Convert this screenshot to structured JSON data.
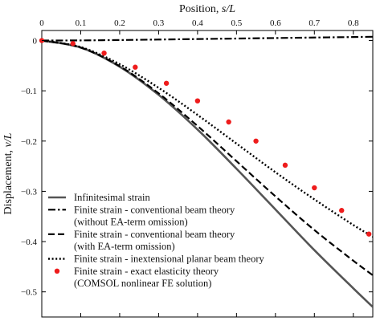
{
  "chart_data": {
    "type": "line",
    "xlabel": "Position, s/L",
    "xlabel_parts": {
      "text": "Position, ",
      "var": "s/L"
    },
    "ylabel": "Displacement, v/L",
    "ylabel_parts": {
      "text": "Displacement, ",
      "var": "v/L"
    },
    "xlim": [
      0,
      0.85
    ],
    "ylim": [
      -0.55,
      0.02
    ],
    "x_axis_position": "top",
    "x_ticks": [
      0,
      0.1,
      0.2,
      0.3,
      0.4,
      0.5,
      0.6,
      0.7,
      0.8
    ],
    "x_tick_labels": [
      "0",
      "0.1",
      "0.2",
      "0.3",
      "0.4",
      "0.5",
      "0.6",
      "0.7",
      "0.8"
    ],
    "y_ticks": [
      0,
      -0.1,
      -0.2,
      -0.3,
      -0.4,
      -0.5
    ],
    "y_tick_labels": [
      "0",
      "−0.1",
      "−0.2",
      "−0.3",
      "−0.4",
      "−0.5"
    ],
    "grid": false,
    "legend_position": "bottom-left",
    "series": [
      {
        "name": "Infinitesimal strain",
        "style": "solid",
        "color": "#555555",
        "x": [
          0,
          0.1,
          0.2,
          0.3,
          0.4,
          0.5,
          0.6,
          0.7,
          0.8,
          0.85
        ],
        "y": [
          0,
          -0.014,
          -0.052,
          -0.108,
          -0.177,
          -0.255,
          -0.336,
          -0.417,
          -0.493,
          -0.53
        ]
      },
      {
        "name": "Finite strain - conventional beam theory",
        "name_line2": "(without EA-term omission)",
        "style": "dashdot",
        "color": "#000000",
        "x": [
          0,
          0.1,
          0.2,
          0.3,
          0.4,
          0.5,
          0.6,
          0.7,
          0.8,
          0.85
        ],
        "y": [
          0,
          0.0003,
          0.001,
          0.002,
          0.003,
          0.004,
          0.005,
          0.006,
          0.007,
          0.0075
        ]
      },
      {
        "name": "Finite strain - conventional beam theory",
        "name_line2": "(with EA-term omission)",
        "style": "dashed",
        "color": "#000000",
        "x": [
          0,
          0.1,
          0.2,
          0.3,
          0.4,
          0.5,
          0.6,
          0.7,
          0.8,
          0.85
        ],
        "y": [
          0,
          -0.014,
          -0.051,
          -0.105,
          -0.17,
          -0.24,
          -0.31,
          -0.377,
          -0.438,
          -0.467
        ]
      },
      {
        "name": "Finite strain - inextensional planar beam theory",
        "style": "dotted",
        "color": "#000000",
        "x": [
          0,
          0.1,
          0.2,
          0.3,
          0.4,
          0.5,
          0.6,
          0.7,
          0.8,
          0.85
        ],
        "y": [
          0,
          -0.013,
          -0.047,
          -0.094,
          -0.148,
          -0.205,
          -0.262,
          -0.316,
          -0.367,
          -0.39
        ]
      },
      {
        "name": "Finite strain - exact elasticity theory",
        "name_line2": "(COMSOL nonlinear FE solution)",
        "style": "markers",
        "color": "#ee1c1c",
        "x": [
          0,
          0.08,
          0.16,
          0.24,
          0.32,
          0.4,
          0.48,
          0.55,
          0.625,
          0.7,
          0.77,
          0.84
        ],
        "y": [
          0,
          -0.006,
          -0.025,
          -0.053,
          -0.085,
          -0.12,
          -0.162,
          -0.2,
          -0.248,
          -0.293,
          -0.338,
          -0.385
        ]
      }
    ]
  }
}
